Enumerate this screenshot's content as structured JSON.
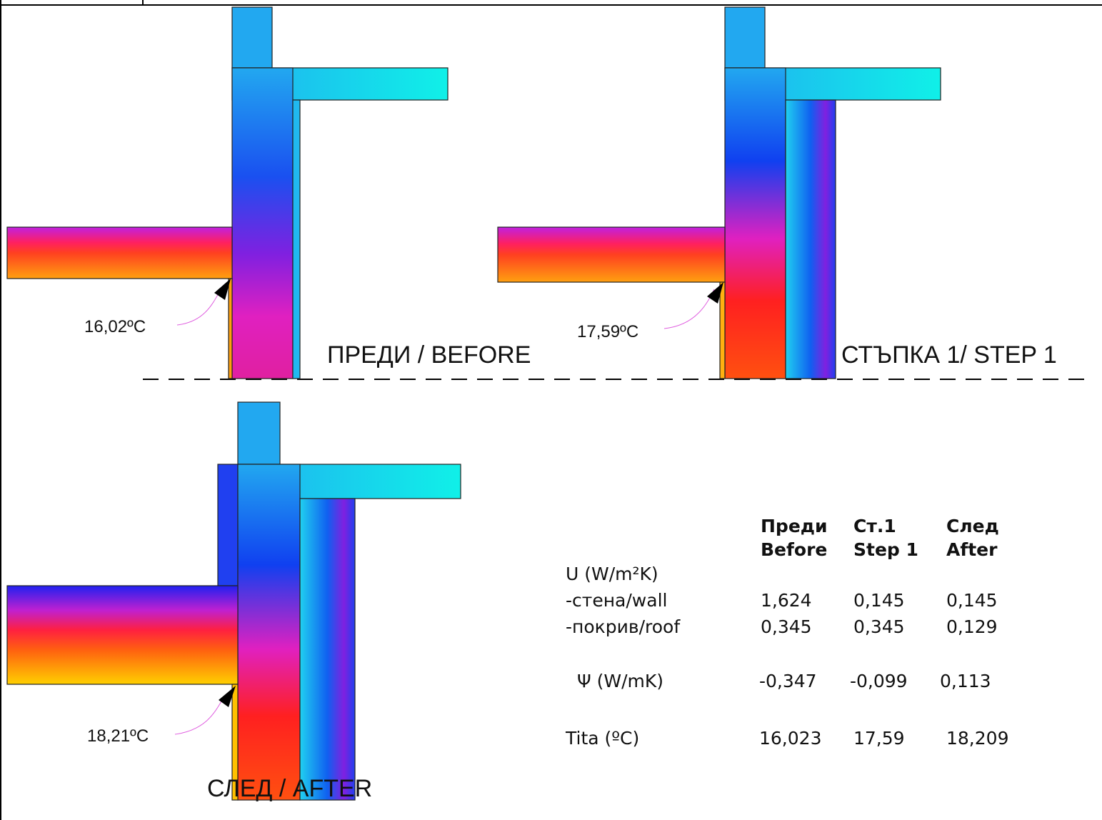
{
  "labels": {
    "before": "ПРЕДИ / BEFORE",
    "step1": "СТЪПКА 1/ STEP 1",
    "after": "СЛЕД / AFTER"
  },
  "temperatures": {
    "before": "16,02ºC",
    "step1": "17,59ºC",
    "after": "18,21ºC"
  },
  "table": {
    "headers": [
      [
        "Преди",
        "Before"
      ],
      [
        "Ст.1",
        "Step 1"
      ],
      [
        "След",
        "After"
      ]
    ],
    "group": "U  (W/m²K)",
    "rows": [
      [
        "-стена/wall",
        "1,624",
        "0,145",
        "0,145"
      ],
      [
        "-покрив/roof",
        "0,345",
        "0,345",
        "0,129"
      ],
      [
        "Ψ (W/mK)",
        "-0,347",
        "-0,099",
        "0,113"
      ],
      [
        "Tita (ºC)",
        "16,023",
        "17,59",
        "18,209"
      ]
    ]
  }
}
